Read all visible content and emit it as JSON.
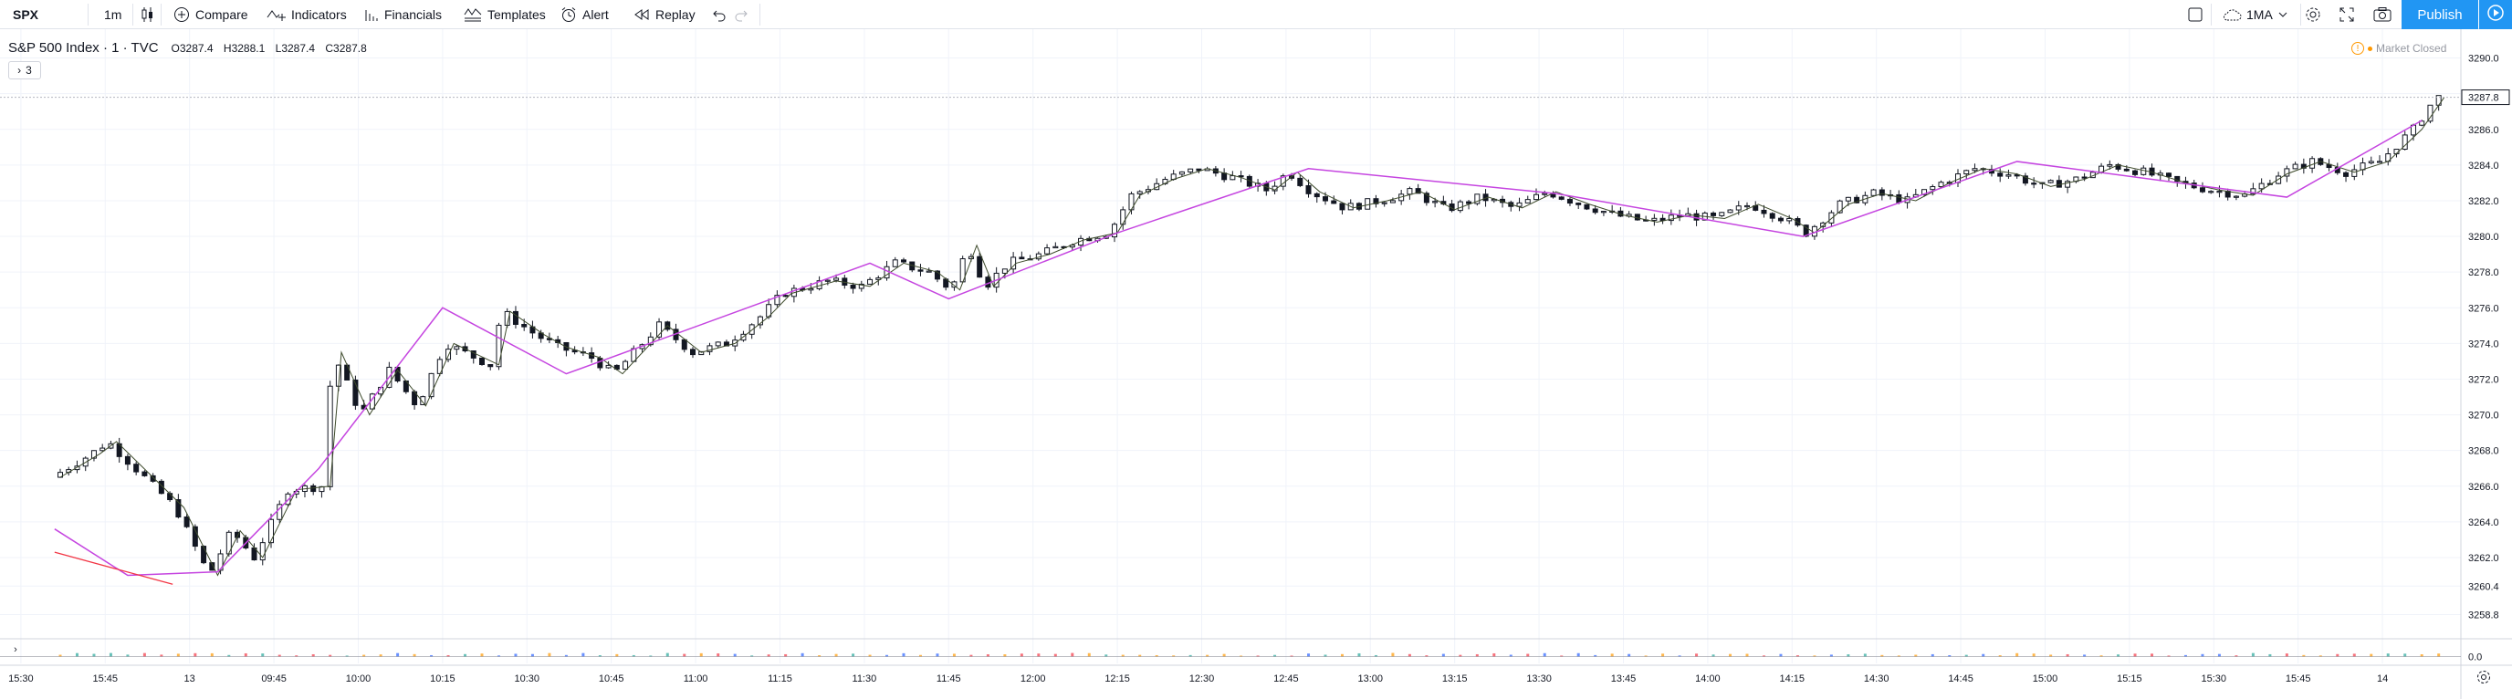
{
  "toolbar": {
    "symbol": "SPX",
    "interval": "1m",
    "compare_label": "Compare",
    "indicators_label": "Indicators",
    "financials_label": "Financials",
    "templates_label": "Templates",
    "alert_label": "Alert",
    "replay_label": "Replay",
    "layout_label": "1MA",
    "publish_label": "Publish"
  },
  "legend": {
    "title": "S&P 500 Index · 1 · TVC",
    "open": "O3287.4",
    "high": "H3288.1",
    "low": "L3287.4",
    "close": "C3287.8",
    "indicator_count": "3",
    "market_status": "Market Closed"
  },
  "volume_pane": {
    "toggle": "›",
    "zero_label": "0.0"
  },
  "colors": {
    "zigzag_main": "#c545e0",
    "zigzag_minor": "#3d4a2b",
    "red_line": "#f23645",
    "publish": "#2196f3",
    "grid": "#f0f3fa"
  },
  "chart_data": {
    "type": "candlestick",
    "symbol": "SPX",
    "interval": "1",
    "ylim": [
      3257.6,
      3291.0
    ],
    "y_ticks": [
      "3290.0",
      "3288.0",
      "3286.0",
      "3284.0",
      "3282.0",
      "3280.0",
      "3278.0",
      "3276.0",
      "3274.0",
      "3272.0",
      "3270.0",
      "3268.0",
      "3266.0",
      "3264.0",
      "3262.0",
      "3260.4",
      "3258.8"
    ],
    "last_price_label": "3287.8",
    "x_ticks": [
      "15:30",
      "15:45",
      "13",
      "09:45",
      "10:00",
      "10:15",
      "10:30",
      "10:45",
      "11:00",
      "11:15",
      "11:30",
      "11:45",
      "12:00",
      "12:15",
      "12:30",
      "12:45",
      "13:00",
      "13:15",
      "13:30",
      "13:45",
      "14:00",
      "14:15",
      "14:30",
      "14:45",
      "15:00",
      "15:15",
      "15:30",
      "15:45",
      "14"
    ],
    "price_path": [
      {
        "t": 0,
        "p": 3266.5
      },
      {
        "t": 0.7,
        "p": 3267.8
      },
      {
        "t": 1.0,
        "p": 3268.5
      },
      {
        "t": 2.2,
        "p": 3264.8
      },
      {
        "t": 2.8,
        "p": 3261.0
      },
      {
        "t": 3.2,
        "p": 3263.5
      },
      {
        "t": 3.6,
        "p": 3262.0
      },
      {
        "t": 4.2,
        "p": 3265.8
      },
      {
        "t": 4.8,
        "p": 3266.0
      },
      {
        "t": 5.0,
        "p": 3273.5
      },
      {
        "t": 5.5,
        "p": 3270.0
      },
      {
        "t": 6.0,
        "p": 3272.5
      },
      {
        "t": 6.5,
        "p": 3270.5
      },
      {
        "t": 7.0,
        "p": 3274.0
      },
      {
        "t": 7.8,
        "p": 3272.8
      },
      {
        "t": 8.0,
        "p": 3275.8
      },
      {
        "t": 8.6,
        "p": 3274.5
      },
      {
        "t": 9.0,
        "p": 3273.8
      },
      {
        "t": 9.6,
        "p": 3273.2
      },
      {
        "t": 10.0,
        "p": 3272.3
      },
      {
        "t": 10.8,
        "p": 3275.0
      },
      {
        "t": 11.4,
        "p": 3273.5
      },
      {
        "t": 12.0,
        "p": 3274.0
      },
      {
        "t": 12.6,
        "p": 3275.5
      },
      {
        "t": 13.0,
        "p": 3276.8
      },
      {
        "t": 13.8,
        "p": 3277.5
      },
      {
        "t": 14.4,
        "p": 3277.2
      },
      {
        "t": 15.0,
        "p": 3278.5
      },
      {
        "t": 15.6,
        "p": 3278.0
      },
      {
        "t": 16.0,
        "p": 3277.0
      },
      {
        "t": 16.3,
        "p": 3279.5
      },
      {
        "t": 16.6,
        "p": 3277.2
      },
      {
        "t": 17.0,
        "p": 3278.5
      },
      {
        "t": 17.6,
        "p": 3279.0
      },
      {
        "t": 18.2,
        "p": 3279.8
      },
      {
        "t": 18.8,
        "p": 3280.2
      },
      {
        "t": 19.2,
        "p": 3282.3
      },
      {
        "t": 19.8,
        "p": 3283.2
      },
      {
        "t": 20.4,
        "p": 3283.8
      },
      {
        "t": 21.0,
        "p": 3283.3
      },
      {
        "t": 21.6,
        "p": 3282.6
      },
      {
        "t": 22.0,
        "p": 3283.6
      },
      {
        "t": 22.4,
        "p": 3282.5
      },
      {
        "t": 23.0,
        "p": 3281.6
      },
      {
        "t": 23.6,
        "p": 3282.0
      },
      {
        "t": 24.2,
        "p": 3282.5
      },
      {
        "t": 24.8,
        "p": 3281.5
      },
      {
        "t": 25.4,
        "p": 3282.2
      },
      {
        "t": 26.0,
        "p": 3281.6
      },
      {
        "t": 26.6,
        "p": 3282.5
      },
      {
        "t": 27.2,
        "p": 3281.8
      },
      {
        "t": 27.8,
        "p": 3281.2
      },
      {
        "t": 28.4,
        "p": 3280.8
      },
      {
        "t": 29.0,
        "p": 3281.2
      },
      {
        "t": 29.6,
        "p": 3281.0
      },
      {
        "t": 30.2,
        "p": 3281.8
      },
      {
        "t": 30.8,
        "p": 3281.0
      },
      {
        "t": 31.2,
        "p": 3280.2
      },
      {
        "t": 31.8,
        "p": 3281.8
      },
      {
        "t": 32.4,
        "p": 3282.4
      },
      {
        "t": 33.0,
        "p": 3282.0
      },
      {
        "t": 33.6,
        "p": 3283.0
      },
      {
        "t": 34.2,
        "p": 3283.8
      },
      {
        "t": 34.8,
        "p": 3283.5
      },
      {
        "t": 35.4,
        "p": 3282.8
      },
      {
        "t": 36.0,
        "p": 3283.2
      },
      {
        "t": 36.6,
        "p": 3284.0
      },
      {
        "t": 37.2,
        "p": 3283.6
      },
      {
        "t": 37.8,
        "p": 3283.0
      },
      {
        "t": 38.4,
        "p": 3282.6
      },
      {
        "t": 39.0,
        "p": 3282.3
      },
      {
        "t": 39.6,
        "p": 3283.5
      },
      {
        "t": 40.2,
        "p": 3284.2
      },
      {
        "t": 40.8,
        "p": 3283.6
      },
      {
        "t": 41.4,
        "p": 3284.2
      },
      {
        "t": 42.0,
        "p": 3286.0
      },
      {
        "t": 42.4,
        "p": 3287.8
      }
    ],
    "zigzag_main": [
      {
        "t": -0.1,
        "p": 3263.6
      },
      {
        "t": 1.2,
        "p": 3261.0
      },
      {
        "t": 2.8,
        "p": 3261.2
      },
      {
        "t": 4.6,
        "p": 3267.0
      },
      {
        "t": 6.8,
        "p": 3276.0
      },
      {
        "t": 9.0,
        "p": 3272.3
      },
      {
        "t": 14.4,
        "p": 3278.5
      },
      {
        "t": 15.8,
        "p": 3276.5
      },
      {
        "t": 18.8,
        "p": 3280.2
      },
      {
        "t": 22.2,
        "p": 3283.8
      },
      {
        "t": 26.6,
        "p": 3282.4
      },
      {
        "t": 31.0,
        "p": 3280.0
      },
      {
        "t": 34.8,
        "p": 3284.2
      },
      {
        "t": 39.6,
        "p": 3282.2
      },
      {
        "t": 42.0,
        "p": 3286.5
      }
    ],
    "red_line": [
      {
        "t": -0.1,
        "p": 3262.3
      },
      {
        "t": 2.0,
        "p": 3260.5
      }
    ],
    "volume_pane": {
      "zero_label": "0.0"
    }
  }
}
